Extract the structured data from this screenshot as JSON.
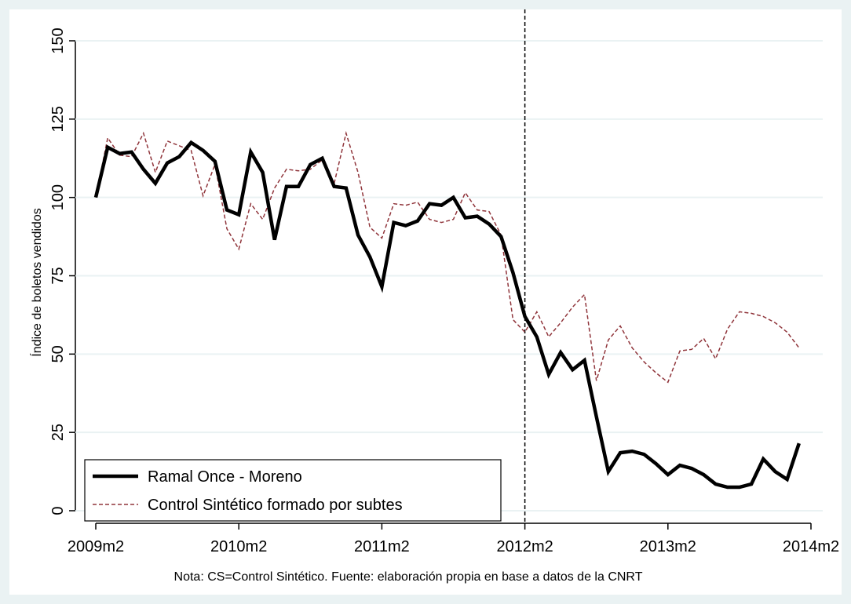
{
  "chart_data": {
    "type": "line",
    "ylabel": "Índice de boletos vendidos",
    "note": "Nota: CS=Control Sintético. Fuente: elaboración propia en base a datos de la CNRT",
    "x": [
      589,
      590,
      591,
      592,
      593,
      594,
      595,
      596,
      597,
      598,
      599,
      600,
      601,
      602,
      603,
      604,
      605,
      606,
      607,
      608,
      609,
      610,
      611,
      612,
      613,
      614,
      615,
      616,
      617,
      618,
      619,
      620,
      621,
      622,
      623,
      624,
      625,
      626,
      627,
      628,
      629,
      630,
      631,
      632,
      633,
      634,
      635,
      636,
      637,
      638,
      639,
      640,
      641,
      642,
      643,
      644,
      645,
      646,
      647,
      648
    ],
    "series": [
      {
        "name": "Ramal Once - Moreno",
        "color": "#000000",
        "style": "solid",
        "values": [
          100,
          116,
          114,
          114.5,
          109,
          104.5,
          111,
          113,
          117.5,
          115,
          111.5,
          96,
          94.5,
          114.5,
          108,
          86.5,
          103.5,
          103.5,
          110.5,
          112.5,
          103.5,
          103,
          88,
          81,
          71.5,
          92,
          91,
          92.5,
          98,
          97.5,
          100,
          93.5,
          94,
          91.5,
          87.5,
          76,
          62,
          55.5,
          43.5,
          50.5,
          45,
          48,
          30,
          12.5,
          18.5,
          19,
          18,
          15,
          11.5,
          14.5,
          13.5,
          11.5,
          8.5,
          7.5,
          7.5,
          8.5,
          16.5,
          12.5,
          10,
          21.5
        ]
      },
      {
        "name": "Control Sintético formado por subtes",
        "color": "#90353b",
        "style": "dashed",
        "values": [
          100,
          119,
          113.5,
          113,
          120.5,
          108,
          118,
          116.5,
          115,
          100.5,
          110.5,
          90,
          83.5,
          98,
          93,
          103,
          109,
          108.5,
          109,
          112,
          104.5,
          120.5,
          108,
          90.5,
          87,
          98,
          97.5,
          98.5,
          93,
          92,
          93,
          101.5,
          96,
          95.5,
          88,
          61,
          57,
          63.5,
          55.5,
          60,
          65,
          69,
          41.5,
          54.5,
          59,
          52,
          47.5,
          44,
          41,
          51,
          51.5,
          55,
          48.5,
          58,
          63.5,
          63,
          62,
          60,
          57,
          52
        ]
      }
    ],
    "xlim": [
      589,
      649
    ],
    "xticks": [
      {
        "value": 589,
        "label": "2009m2"
      },
      {
        "value": 601,
        "label": "2010m2"
      },
      {
        "value": 613,
        "label": "2011m2"
      },
      {
        "value": 625,
        "label": "2012m2"
      },
      {
        "value": 637,
        "label": "2013m2"
      },
      {
        "value": 649,
        "label": "2014m2"
      }
    ],
    "ylim": [
      0,
      150
    ],
    "yticks": [
      0,
      25,
      50,
      75,
      100,
      125,
      150
    ],
    "vline": 625,
    "grid": true,
    "legend": "lower-left"
  }
}
